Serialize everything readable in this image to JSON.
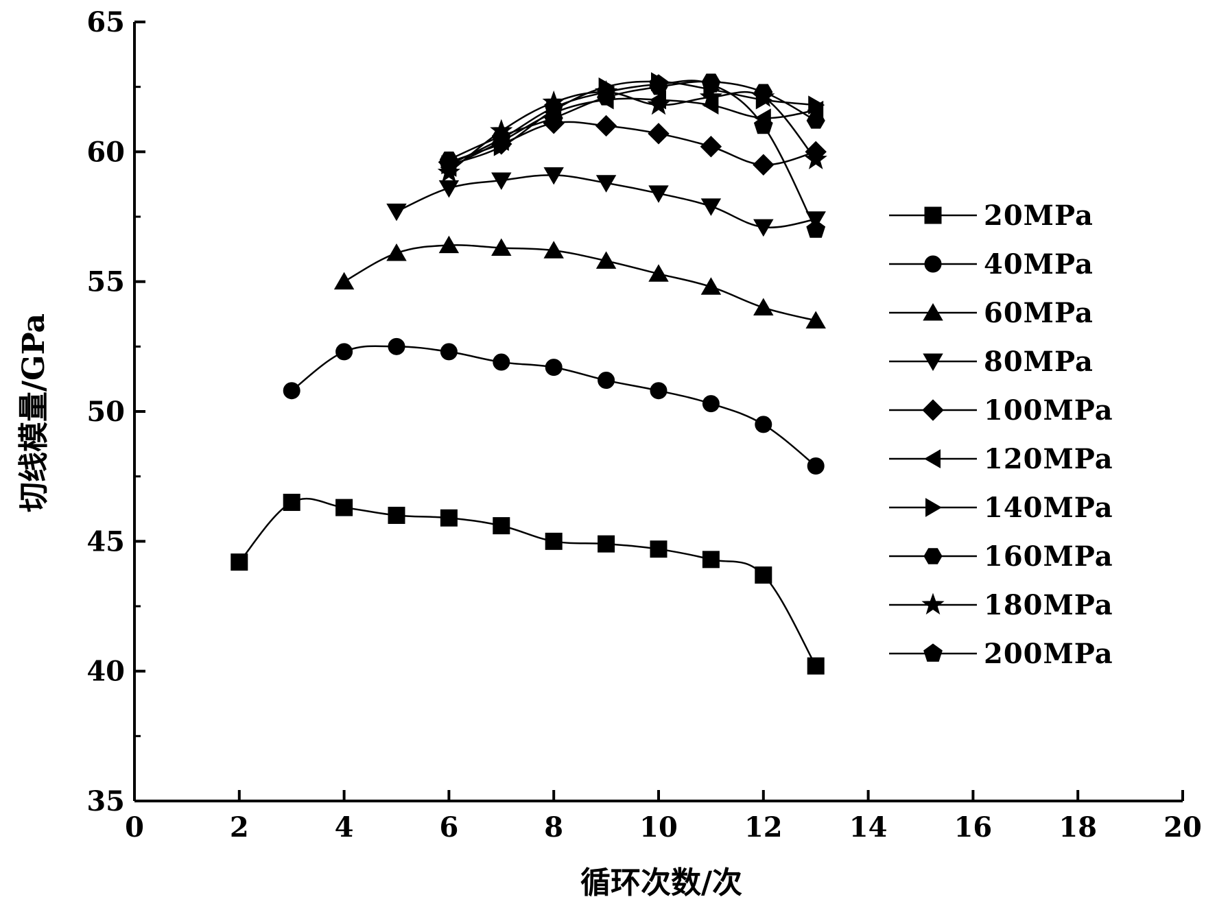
{
  "chart_data": {
    "type": "line",
    "title": "",
    "xlabel": "循环次数/次",
    "ylabel": "切线模量/GPa",
    "xlim": [
      0,
      20
    ],
    "ylim": [
      35,
      65
    ],
    "xticks": [
      0,
      2,
      4,
      6,
      8,
      10,
      12,
      14,
      16,
      18,
      20
    ],
    "yticks": [
      35,
      40,
      45,
      50,
      55,
      60,
      65
    ],
    "grid": false,
    "legend_position": "right",
    "series": [
      {
        "name": "20MPa",
        "marker": "square",
        "x": [
          2,
          3,
          4,
          5,
          6,
          7,
          8,
          9,
          10,
          11,
          12,
          13
        ],
        "y": [
          44.2,
          46.5,
          46.3,
          46.0,
          45.9,
          45.6,
          45.0,
          44.9,
          44.7,
          44.3,
          43.7,
          40.2
        ]
      },
      {
        "name": "40MPa",
        "marker": "circle",
        "x": [
          3,
          4,
          5,
          6,
          7,
          8,
          9,
          10,
          11,
          12,
          13
        ],
        "y": [
          50.8,
          52.3,
          52.5,
          52.3,
          51.9,
          51.7,
          51.2,
          50.8,
          50.3,
          49.5,
          47.9
        ]
      },
      {
        "name": "60MPa",
        "marker": "triangle-up",
        "x": [
          4,
          5,
          6,
          7,
          8,
          9,
          10,
          11,
          12,
          13
        ],
        "y": [
          55.0,
          56.1,
          56.4,
          56.3,
          56.2,
          55.8,
          55.3,
          54.8,
          54.0,
          53.5
        ]
      },
      {
        "name": "80MPa",
        "marker": "triangle-down",
        "x": [
          5,
          6,
          7,
          8,
          9,
          10,
          11,
          12,
          13
        ],
        "y": [
          57.7,
          58.6,
          58.9,
          59.1,
          58.8,
          58.4,
          57.9,
          57.1,
          57.4
        ]
      },
      {
        "name": "100MPa",
        "marker": "diamond",
        "x": [
          6,
          7,
          8,
          9,
          10,
          11,
          12,
          13
        ],
        "y": [
          59.6,
          60.3,
          61.1,
          61.0,
          60.7,
          60.2,
          59.5,
          60.0
        ]
      },
      {
        "name": "120MPa",
        "marker": "triangle-left",
        "x": [
          6,
          7,
          8,
          9,
          10,
          11,
          12,
          13
        ],
        "y": [
          59.4,
          60.4,
          61.5,
          62.0,
          62.0,
          61.8,
          61.3,
          61.6
        ]
      },
      {
        "name": "140MPa",
        "marker": "triangle-right",
        "x": [
          6,
          7,
          8,
          9,
          10,
          11,
          12,
          13
        ],
        "y": [
          59.5,
          60.2,
          61.6,
          62.5,
          62.7,
          62.4,
          62.0,
          61.8
        ]
      },
      {
        "name": "160MPa",
        "marker": "hexagon",
        "x": [
          6,
          7,
          8,
          9,
          10,
          11,
          12,
          13
        ],
        "y": [
          59.7,
          60.6,
          61.3,
          62.1,
          62.5,
          62.7,
          62.3,
          61.2
        ]
      },
      {
        "name": "180MPa",
        "marker": "star",
        "x": [
          6,
          7,
          8,
          9,
          10,
          11,
          12,
          13
        ],
        "y": [
          59.2,
          60.8,
          61.9,
          62.3,
          61.8,
          62.1,
          62.1,
          59.7
        ]
      },
      {
        "name": "200MPa",
        "marker": "pentagon",
        "x": [
          6,
          7,
          8,
          9,
          10,
          11,
          12,
          13
        ],
        "y": [
          59.5,
          60.5,
          61.7,
          62.3,
          62.6,
          62.6,
          61.0,
          57.0
        ]
      }
    ]
  }
}
